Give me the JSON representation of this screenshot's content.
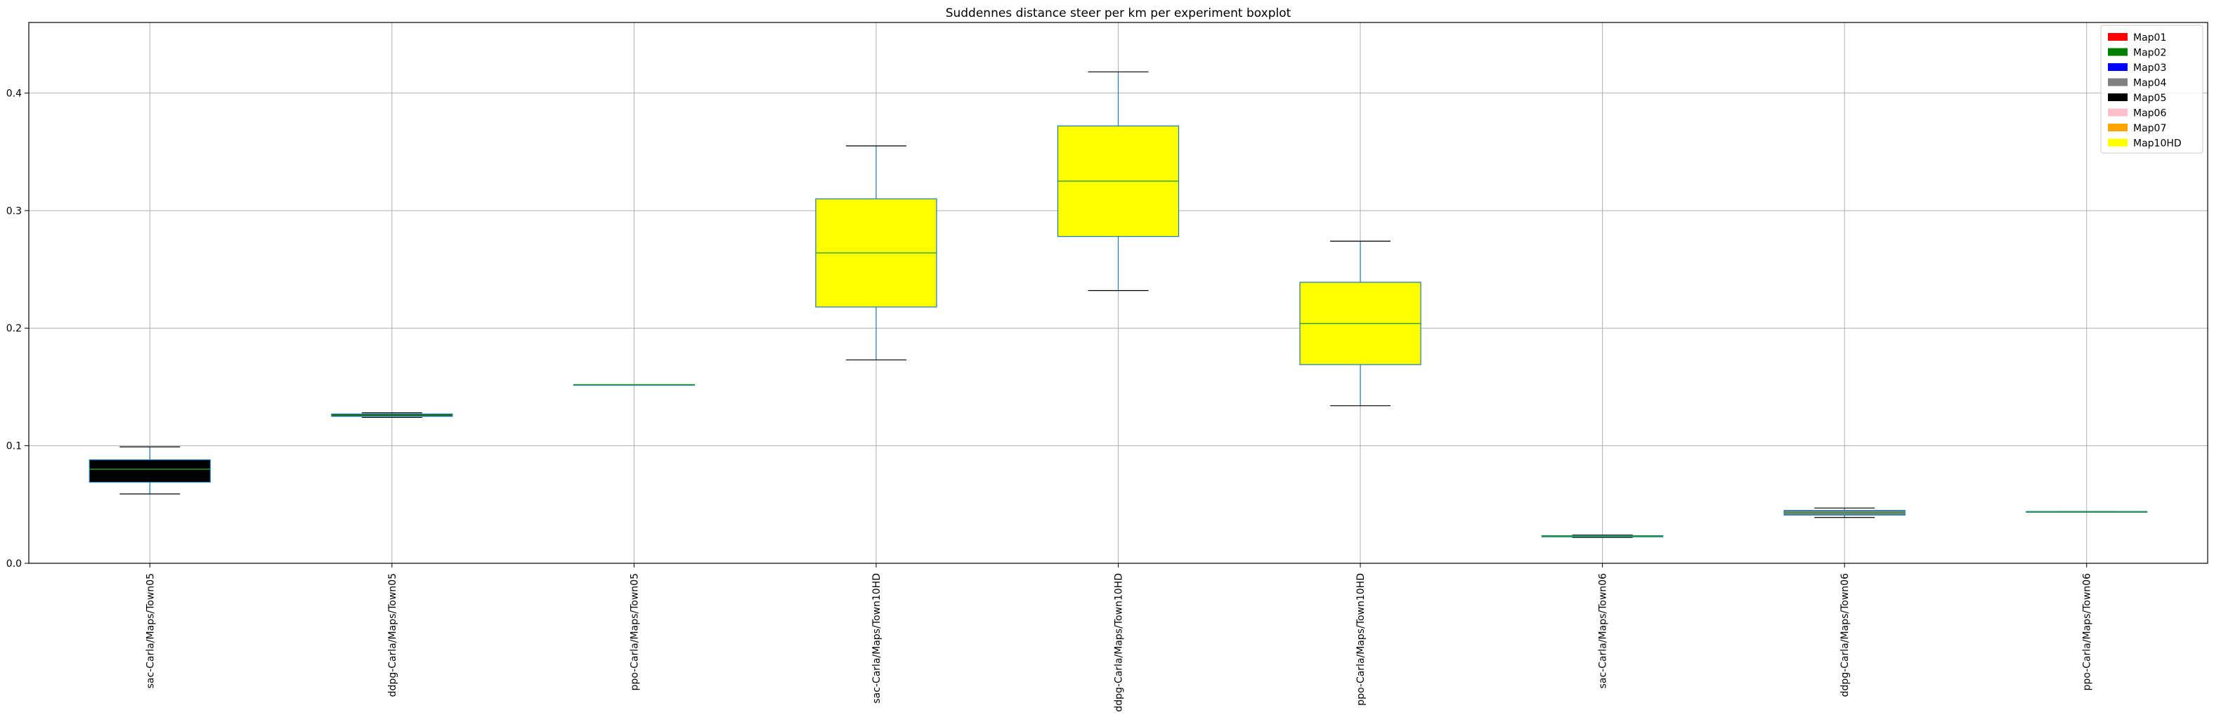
{
  "chart_data": {
    "type": "boxplot",
    "title": "Suddennes distance steer per km per experiment boxplot",
    "xlabel": "",
    "ylabel": "",
    "ylim": [
      0,
      0.46
    ],
    "yticks": [
      0.0,
      0.1,
      0.2,
      0.3,
      0.4
    ],
    "ytick_labels": [
      "0.0",
      "0.1",
      "0.2",
      "0.3",
      "0.4"
    ],
    "grid": true,
    "legend_position": "top-right",
    "legend": [
      {
        "label": "Map01",
        "color": "#ff0000"
      },
      {
        "label": "Map02",
        "color": "#008000"
      },
      {
        "label": "Map03",
        "color": "#0000ff"
      },
      {
        "label": "Map04",
        "color": "#808080"
      },
      {
        "label": "Map05",
        "color": "#000000"
      },
      {
        "label": "Map06",
        "color": "#ffc0cb"
      },
      {
        "label": "Map07",
        "color": "#ffa500"
      },
      {
        "label": "Map10HD",
        "color": "#ffff00"
      }
    ],
    "boxes": [
      {
        "label": "sac-Carla/Maps/Town05",
        "whislo": 0.059,
        "q1": 0.069,
        "med": 0.08,
        "q3": 0.088,
        "whishi": 0.099,
        "color": "#000000"
      },
      {
        "label": "ddpg-Carla/Maps/Town05",
        "whislo": 0.124,
        "q1": 0.125,
        "med": 0.126,
        "q3": 0.127,
        "whishi": 0.128,
        "color": "#000000"
      },
      {
        "label": "ppo-Carla/Maps/Town05",
        "whislo": 0.152,
        "q1": 0.152,
        "med": 0.152,
        "q3": 0.152,
        "whishi": 0.152,
        "color": "#000000"
      },
      {
        "label": "sac-Carla/Maps/Town10HD",
        "whislo": 0.173,
        "q1": 0.218,
        "med": 0.264,
        "q3": 0.31,
        "whishi": 0.355,
        "color": "#ffff00"
      },
      {
        "label": "ddpg-Carla/Maps/Town10HD",
        "whislo": 0.232,
        "q1": 0.278,
        "med": 0.325,
        "q3": 0.372,
        "whishi": 0.418,
        "color": "#ffff00"
      },
      {
        "label": "ppo-Carla/Maps/Town10HD",
        "whislo": 0.134,
        "q1": 0.169,
        "med": 0.204,
        "q3": 0.239,
        "whishi": 0.274,
        "color": "#ffff00"
      },
      {
        "label": "sac-Carla/Maps/Town06",
        "whislo": 0.022,
        "q1": 0.0225,
        "med": 0.023,
        "q3": 0.0235,
        "whishi": 0.024,
        "color": "#808080"
      },
      {
        "label": "ddpg-Carla/Maps/Town06",
        "whislo": 0.039,
        "q1": 0.041,
        "med": 0.043,
        "q3": 0.045,
        "whishi": 0.047,
        "color": "#808080"
      },
      {
        "label": "ppo-Carla/Maps/Town06",
        "whislo": 0.044,
        "q1": 0.044,
        "med": 0.044,
        "q3": 0.044,
        "whishi": 0.044,
        "color": "#808080"
      }
    ]
  }
}
